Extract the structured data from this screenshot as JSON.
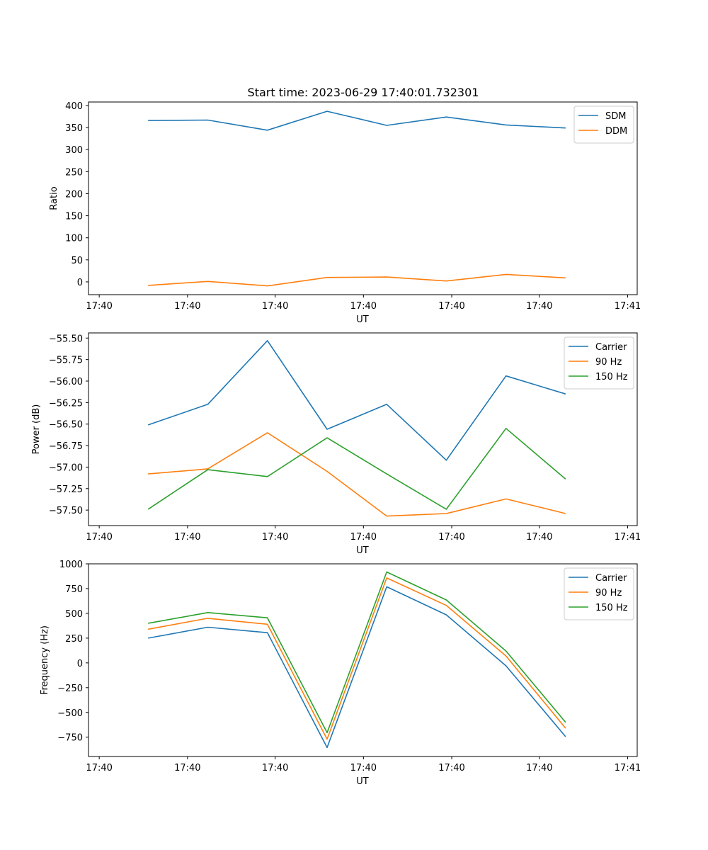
{
  "figure_title": "Start time: 2023-06-29 17:40:01.732301",
  "colors": {
    "blue": "#1f77b4",
    "orange": "#ff7f0e",
    "green": "#2ca02c"
  },
  "chart_data": [
    {
      "type": "line",
      "title": "Start time: 2023-06-29 17:40:01.732301",
      "xlabel": "UT",
      "ylabel": "Ratio",
      "x": [
        1.0,
        2.0,
        3.0,
        4.0,
        5.0,
        6.0,
        7.0,
        8.0
      ],
      "xlim": [
        0.0,
        9.2
      ],
      "xticks": [
        0.18,
        1.66,
        3.13,
        4.61,
        6.09,
        7.56,
        9.04
      ],
      "xtick_labels": [
        "17:40",
        "17:40",
        "17:40",
        "17:40",
        "17:40",
        "17:40",
        "17:41"
      ],
      "ylim": [
        -29,
        408
      ],
      "yticks": [
        0,
        50,
        100,
        150,
        200,
        250,
        300,
        350,
        400
      ],
      "ytick_labels": [
        "0",
        "50",
        "100",
        "150",
        "200",
        "250",
        "300",
        "350",
        "400"
      ],
      "legend": "top-right",
      "series": [
        {
          "name": "SDM",
          "color": "#1f77b4",
          "values": [
            366,
            367,
            344,
            387,
            355,
            374,
            356,
            349
          ]
        },
        {
          "name": "DDM",
          "color": "#ff7f0e",
          "values": [
            -8,
            1,
            -9,
            10,
            11,
            2,
            17,
            9
          ]
        }
      ]
    },
    {
      "type": "line",
      "xlabel": "UT",
      "ylabel": "Power (dB)",
      "x": [
        1.0,
        2.0,
        3.0,
        4.0,
        5.0,
        6.0,
        7.0,
        8.0
      ],
      "xlim": [
        0.0,
        9.2
      ],
      "xticks": [
        0.18,
        1.66,
        3.13,
        4.61,
        6.09,
        7.56,
        9.04
      ],
      "xtick_labels": [
        "17:40",
        "17:40",
        "17:40",
        "17:40",
        "17:40",
        "17:40",
        "17:41"
      ],
      "ylim": [
        -57.68,
        -55.44
      ],
      "yticks": [
        -57.5,
        -57.25,
        -57.0,
        -56.75,
        -56.5,
        -56.25,
        -56.0,
        -55.75,
        -55.5
      ],
      "ytick_labels": [
        "−57.50",
        "−57.25",
        "−57.00",
        "−56.75",
        "−56.50",
        "−56.25",
        "−56.00",
        "−55.75",
        "−55.50"
      ],
      "legend": "top-right",
      "series": [
        {
          "name": "Carrier",
          "color": "#1f77b4",
          "values": [
            -56.51,
            -56.27,
            -55.53,
            -56.56,
            -56.27,
            -56.92,
            -55.94,
            -56.15
          ]
        },
        {
          "name": "90 Hz",
          "color": "#ff7f0e",
          "values": [
            -57.08,
            -57.02,
            -56.6,
            -57.05,
            -57.57,
            -57.54,
            -57.37,
            -57.54
          ]
        },
        {
          "name": "150 Hz",
          "color": "#2ca02c",
          "values": [
            -57.49,
            -57.03,
            -57.11,
            -56.66,
            -57.08,
            -57.49,
            -56.55,
            -57.14
          ]
        }
      ]
    },
    {
      "type": "line",
      "xlabel": "UT",
      "ylabel": "Frequency (Hz)",
      "x": [
        1.0,
        2.0,
        3.0,
        4.0,
        5.0,
        6.0,
        7.0,
        8.0
      ],
      "xlim": [
        0.0,
        9.2
      ],
      "xticks": [
        0.18,
        1.66,
        3.13,
        4.61,
        6.09,
        7.56,
        9.04
      ],
      "xtick_labels": [
        "17:40",
        "17:40",
        "17:40",
        "17:40",
        "17:40",
        "17:40",
        "17:41"
      ],
      "ylim": [
        -945,
        1000
      ],
      "yticks": [
        -750,
        -500,
        -250,
        0,
        250,
        500,
        750,
        1000
      ],
      "ytick_labels": [
        "−750",
        "−500",
        "−250",
        "0",
        "250",
        "500",
        "750",
        "1000"
      ],
      "legend": "top-right",
      "series": [
        {
          "name": "Carrier",
          "color": "#1f77b4",
          "values": [
            250,
            360,
            305,
            -855,
            768,
            485,
            -30,
            -745
          ]
        },
        {
          "name": "90 Hz",
          "color": "#ff7f0e",
          "values": [
            340,
            450,
            390,
            -770,
            858,
            580,
            70,
            -660
          ]
        },
        {
          "name": "150 Hz",
          "color": "#2ca02c",
          "values": [
            400,
            508,
            455,
            -705,
            918,
            635,
            120,
            -600
          ]
        }
      ]
    }
  ]
}
